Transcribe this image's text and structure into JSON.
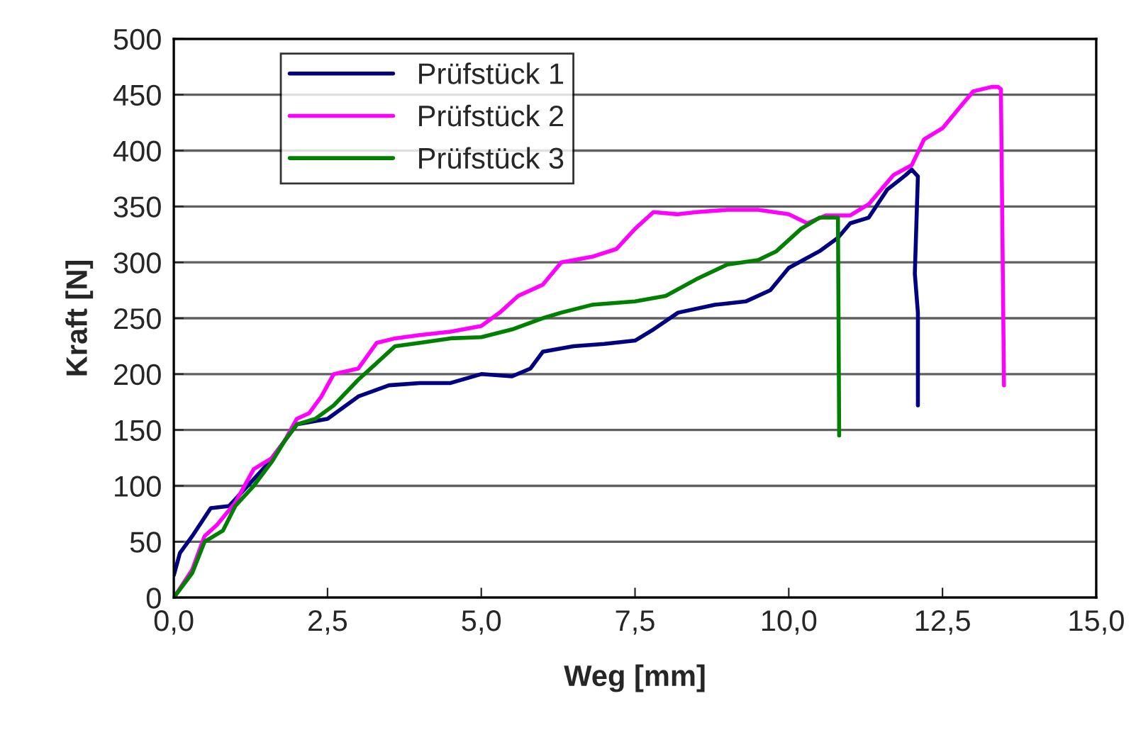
{
  "chart_data": {
    "type": "line",
    "xlabel": "Weg [mm]",
    "ylabel": "Kraft [N]",
    "xlim": [
      0,
      15
    ],
    "ylim": [
      0,
      500
    ],
    "xticks": [
      {
        "value": 0,
        "label": "0,0"
      },
      {
        "value": 2.5,
        "label": "2,5"
      },
      {
        "value": 5,
        "label": "5,0"
      },
      {
        "value": 7.5,
        "label": "7,5"
      },
      {
        "value": 10,
        "label": "10,0"
      },
      {
        "value": 12.5,
        "label": "12,5"
      },
      {
        "value": 15,
        "label": "15,0"
      }
    ],
    "yticks": [
      0,
      50,
      100,
      150,
      200,
      250,
      300,
      350,
      400,
      450,
      500
    ],
    "grid": "y",
    "legend": "top left",
    "marker": "none",
    "line_style": "solid",
    "series": [
      {
        "name": "Prüfstück 1",
        "color": "#000080",
        "x": [
          0,
          0.1,
          0.3,
          0.6,
          0.9,
          1.2,
          1.5,
          1.8,
          2.0,
          2.5,
          3.0,
          3.5,
          4.0,
          4.5,
          5.0,
          5.5,
          5.8,
          6.0,
          6.5,
          7.0,
          7.5,
          7.8,
          8.2,
          8.8,
          9.3,
          9.7,
          10.0,
          10.5,
          10.8,
          11.0,
          11.3,
          11.6,
          11.9,
          12.0,
          12.1,
          12.05,
          12.1,
          12.1
        ],
        "values": [
          20,
          40,
          55,
          80,
          82,
          100,
          118,
          140,
          155,
          160,
          180,
          190,
          192,
          192,
          200,
          198,
          205,
          220,
          225,
          227,
          230,
          240,
          255,
          262,
          265,
          275,
          295,
          310,
          322,
          335,
          340,
          365,
          378,
          383,
          377,
          290,
          255,
          172
        ]
      },
      {
        "name": "Prüfstück 2",
        "color": "#ff00ff",
        "x": [
          0,
          0.3,
          0.5,
          0.7,
          1.0,
          1.3,
          1.6,
          1.8,
          2.0,
          2.2,
          2.4,
          2.6,
          3.0,
          3.3,
          3.6,
          4.0,
          4.5,
          5.0,
          5.3,
          5.6,
          6.0,
          6.3,
          6.8,
          7.2,
          7.5,
          7.8,
          8.2,
          8.5,
          9.0,
          9.5,
          10.0,
          10.3,
          10.6,
          11.0,
          11.3,
          11.5,
          11.7,
          12.0,
          12.2,
          12.5,
          12.8,
          13.0,
          13.3,
          13.4,
          13.45,
          13.5
        ],
        "values": [
          0,
          25,
          55,
          65,
          85,
          115,
          125,
          140,
          160,
          165,
          180,
          200,
          205,
          228,
          232,
          235,
          238,
          243,
          255,
          270,
          280,
          300,
          305,
          312,
          330,
          345,
          343,
          345,
          347,
          347,
          343,
          335,
          342,
          342,
          352,
          365,
          378,
          387,
          410,
          420,
          440,
          453,
          457,
          457,
          455,
          190
        ]
      },
      {
        "name": "Prüfstück 3",
        "color": "#008000",
        "x": [
          0,
          0.3,
          0.5,
          0.8,
          1.0,
          1.3,
          1.6,
          1.8,
          2.0,
          2.3,
          2.6,
          3.0,
          3.3,
          3.6,
          4.0,
          4.5,
          5.0,
          5.5,
          6.0,
          6.3,
          6.8,
          7.5,
          8.0,
          8.5,
          9.0,
          9.5,
          9.8,
          10.2,
          10.5,
          10.8,
          10.82
        ],
        "values": [
          0,
          22,
          50,
          60,
          82,
          100,
          122,
          140,
          155,
          160,
          172,
          195,
          210,
          225,
          228,
          232,
          233,
          240,
          250,
          255,
          262,
          265,
          270,
          285,
          298,
          302,
          310,
          330,
          340,
          340,
          145
        ]
      }
    ]
  }
}
